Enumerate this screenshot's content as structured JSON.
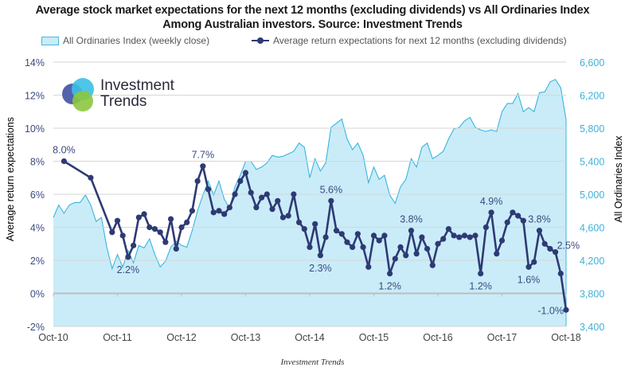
{
  "title_line1": "Average stock market expectations for the next 12 months (excluding dividends) vs All Ordinaries Index",
  "title_line2": "Among Australian investors. Source: Investment Trends",
  "footer": "Investment Trends",
  "logo": {
    "line1": "Investment",
    "line2": "Trends"
  },
  "colors": {
    "expectations": "#2e3a74",
    "index_fill": "#c9ecf8",
    "index_line": "#3bb4dc",
    "left_axis": "#3b4a80",
    "right_axis": "#3fb0d8"
  },
  "chart_data": {
    "type": "line+area",
    "title": "Average stock market expectations for the next 12 months (excluding dividends) vs All Ordinaries Index",
    "legend_position": "top",
    "grid": true,
    "x_tick_labels": [
      "Oct-10",
      "Oct-11",
      "Oct-12",
      "Oct-13",
      "Oct-14",
      "Oct-15",
      "Oct-16",
      "Oct-17",
      "Oct-18"
    ],
    "left_axis": {
      "label": "Average return expectations",
      "ylim": [
        -2,
        14
      ],
      "tick_labels": [
        "14%",
        "12%",
        "10%",
        "8%",
        "6%",
        "4%",
        "2%",
        "0%",
        "-2%"
      ]
    },
    "right_axis": {
      "label": "All Ordinaries Index",
      "ylim": [
        3400,
        6600
      ],
      "tick_labels": [
        "6,600",
        "6,200",
        "5,800",
        "5,400",
        "5,000",
        "4,600",
        "4,200",
        "3,800",
        "3,400"
      ]
    },
    "months": [
      "2010-10",
      "2010-11",
      "2010-12",
      "2011-01",
      "2011-02",
      "2011-03",
      "2011-04",
      "2011-05",
      "2011-06",
      "2011-07",
      "2011-08",
      "2011-09",
      "2011-10",
      "2011-11",
      "2011-12",
      "2012-01",
      "2012-02",
      "2012-03",
      "2012-04",
      "2012-05",
      "2012-06",
      "2012-07",
      "2012-08",
      "2012-09",
      "2012-10",
      "2012-11",
      "2012-12",
      "2013-01",
      "2013-02",
      "2013-03",
      "2013-04",
      "2013-05",
      "2013-06",
      "2013-07",
      "2013-08",
      "2013-09",
      "2013-10",
      "2013-11",
      "2013-12",
      "2014-01",
      "2014-02",
      "2014-03",
      "2014-04",
      "2014-05",
      "2014-06",
      "2014-07",
      "2014-08",
      "2014-09",
      "2014-10",
      "2014-11",
      "2014-12",
      "2015-01",
      "2015-02",
      "2015-03",
      "2015-04",
      "2015-05",
      "2015-06",
      "2015-07",
      "2015-08",
      "2015-09",
      "2015-10",
      "2015-11",
      "2015-12",
      "2016-01",
      "2016-02",
      "2016-03",
      "2016-04",
      "2016-05",
      "2016-06",
      "2016-07",
      "2016-08",
      "2016-09",
      "2016-10",
      "2016-11",
      "2016-12",
      "2017-01",
      "2017-02",
      "2017-03",
      "2017-04",
      "2017-05",
      "2017-06",
      "2017-07",
      "2017-08",
      "2017-09",
      "2017-10",
      "2017-11",
      "2017-12",
      "2018-01",
      "2018-02",
      "2018-03",
      "2018-04",
      "2018-05",
      "2018-06",
      "2018-07",
      "2018-08",
      "2018-09",
      "2018-10"
    ],
    "series": [
      {
        "name": "All Ordinaries Index (weekly close)",
        "type": "area",
        "axis": "right",
        "values": [
          4720,
          4870,
          4770,
          4870,
          4900,
          4900,
          4990,
          4870,
          4670,
          4720,
          4360,
          4100,
          4270,
          4120,
          4320,
          4170,
          4380,
          4350,
          4460,
          4270,
          4120,
          4190,
          4360,
          4430,
          4380,
          4360,
          4560,
          4800,
          4990,
          5160,
          4990,
          5160,
          4940,
          4830,
          5090,
          5230,
          5400,
          5400,
          5300,
          5330,
          5380,
          5470,
          5450,
          5460,
          5490,
          5520,
          5620,
          5570,
          5200,
          5430,
          5280,
          5380,
          5810,
          5860,
          5910,
          5670,
          5540,
          5620,
          5470,
          5140,
          5330,
          5180,
          5230,
          4990,
          4890,
          5090,
          5180,
          5430,
          5330,
          5570,
          5620,
          5430,
          5470,
          5520,
          5670,
          5790,
          5810,
          5890,
          5930,
          5810,
          5780,
          5760,
          5780,
          5760,
          6000,
          6100,
          6100,
          6220,
          6000,
          6050,
          6000,
          6230,
          6240,
          6360,
          6390,
          6290,
          5900
        ]
      },
      {
        "name": "Average return expectations for next 12 months (excluding dividends)",
        "type": "line",
        "axis": "left",
        "values": [
          null,
          null,
          8.0,
          null,
          null,
          null,
          null,
          7.0,
          null,
          null,
          null,
          3.7,
          4.4,
          3.5,
          2.2,
          2.9,
          4.6,
          4.8,
          4.0,
          3.9,
          3.7,
          3.1,
          4.5,
          2.7,
          4.0,
          4.3,
          5.0,
          6.8,
          7.7,
          6.3,
          4.9,
          5.0,
          4.8,
          5.2,
          6.0,
          6.8,
          7.3,
          6.1,
          5.2,
          5.8,
          6.0,
          5.1,
          5.6,
          4.6,
          4.7,
          6.0,
          4.3,
          3.9,
          2.8,
          4.2,
          2.3,
          3.4,
          5.6,
          3.8,
          3.6,
          3.1,
          2.8,
          3.6,
          2.8,
          1.6,
          3.5,
          3.2,
          3.5,
          1.2,
          2.1,
          2.8,
          2.3,
          3.8,
          2.4,
          3.4,
          2.7,
          1.7,
          3.0,
          3.3,
          3.9,
          3.5,
          3.4,
          3.5,
          3.4,
          3.5,
          1.2,
          4.0,
          4.9,
          2.4,
          3.2,
          4.3,
          4.9,
          4.7,
          4.4,
          1.6,
          1.9,
          3.8,
          3.0,
          2.7,
          2.5,
          1.2,
          -1.0
        ]
      }
    ],
    "data_labels": [
      {
        "date": "2010-12",
        "text": "8.0%",
        "position": "above"
      },
      {
        "date": "2011-12",
        "text": "2.2%",
        "position": "below"
      },
      {
        "date": "2013-02",
        "text": "7.7%",
        "position": "above"
      },
      {
        "date": "2014-12",
        "text": "2.3%",
        "position": "below"
      },
      {
        "date": "2015-02",
        "text": "5.6%",
        "position": "above"
      },
      {
        "date": "2016-01",
        "text": "1.2%",
        "position": "below"
      },
      {
        "date": "2016-05",
        "text": "3.8%",
        "position": "above"
      },
      {
        "date": "2017-06",
        "text": "1.2%",
        "position": "below"
      },
      {
        "date": "2017-08",
        "text": "4.9%",
        "position": "above"
      },
      {
        "date": "2018-03",
        "text": "1.6%",
        "position": "below"
      },
      {
        "date": "2018-05",
        "text": "3.8%",
        "position": "above"
      },
      {
        "date": "2018-08",
        "text": "2.5%",
        "position": "right"
      },
      {
        "date": "2018-10",
        "text": "-1.0%",
        "position": "left"
      }
    ]
  }
}
